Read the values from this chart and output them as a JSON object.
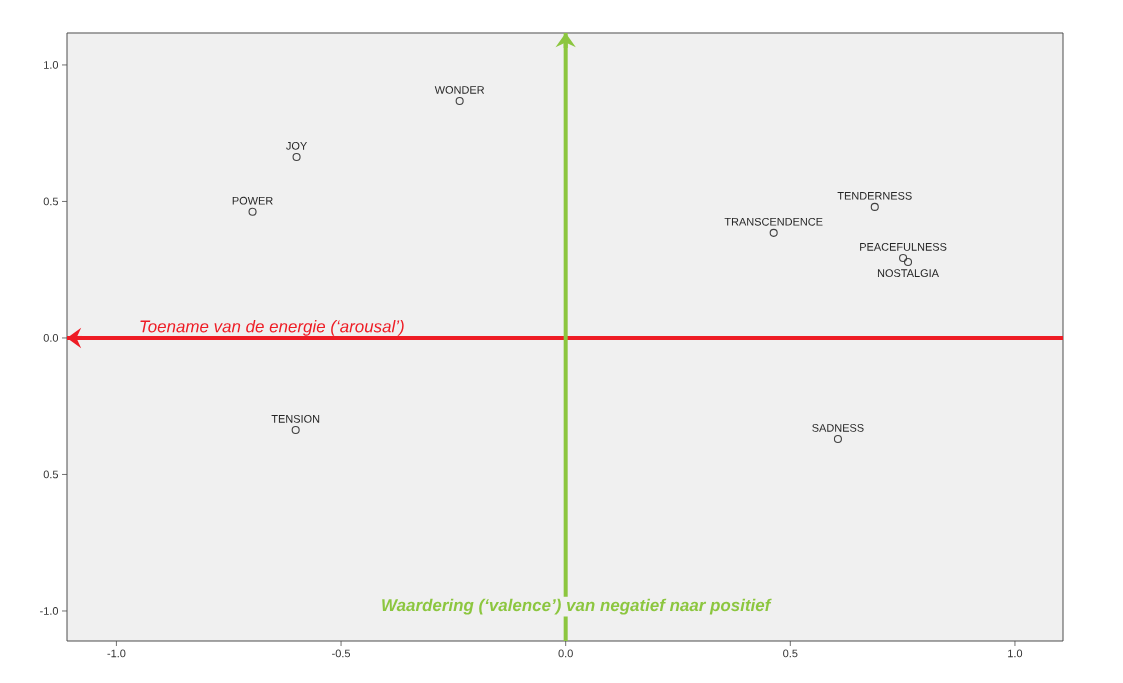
{
  "chart_data": {
    "type": "scatter",
    "x": [
      -0.236,
      -0.599,
      -0.697,
      0.688,
      0.463,
      0.751,
      0.762,
      -0.601,
      0.606
    ],
    "values": [
      0.868,
      0.663,
      0.462,
      0.48,
      0.385,
      0.293,
      0.278,
      -0.337,
      -0.37
    ],
    "color": "#404040",
    "marker": "circle",
    "grid": false,
    "xlim": [
      -1.11,
      1.107
    ],
    "ylim": [
      -1.11,
      1.117
    ],
    "xticks": [
      {
        "value": -1,
        "label": "-1.0"
      },
      {
        "value": -0.5,
        "label": "-0.5"
      },
      {
        "value": 0,
        "label": "0.0"
      },
      {
        "value": 0.5,
        "label": "0.5"
      },
      {
        "value": 1,
        "label": "1.0"
      }
    ],
    "yticks": [
      {
        "value": -1,
        "label": "-1.0"
      },
      {
        "value": -0.5,
        "label": "0.5"
      },
      {
        "value": 0,
        "label": "0.0"
      },
      {
        "value": 0.5,
        "label": "0.5"
      },
      {
        "value": 1,
        "label": "1.0"
      }
    ],
    "annotations": [
      {
        "text": "WONDER",
        "x": -0.236,
        "y": 0.868
      },
      {
        "text": "JOY",
        "x": -0.599,
        "y": 0.663
      },
      {
        "text": "POWER",
        "x": -0.697,
        "y": 0.462
      },
      {
        "text": "TENDERNESS",
        "x": 0.688,
        "y": 0.48
      },
      {
        "text": "TRANSCENDENCE",
        "x": 0.463,
        "y": 0.385
      },
      {
        "text": "PEACEFULNESS",
        "x": 0.751,
        "y": 0.293
      },
      {
        "text": "NOSTALGIA",
        "x": 0.762,
        "y": 0.278
      },
      {
        "text": "TENSION",
        "x": -0.601,
        "y": -0.337
      },
      {
        "text": "SADNESS",
        "x": 0.606,
        "y": -0.37
      }
    ],
    "ref_lines": [
      {
        "axis": "y",
        "value": 0,
        "label": "Toename van de energie (‘arousal’)",
        "color": "#ee1c25"
      },
      {
        "axis": "x",
        "value": 0,
        "label": "Waardering (‘valence’) van negatief naar positief",
        "color": "#8cc63f"
      }
    ]
  }
}
